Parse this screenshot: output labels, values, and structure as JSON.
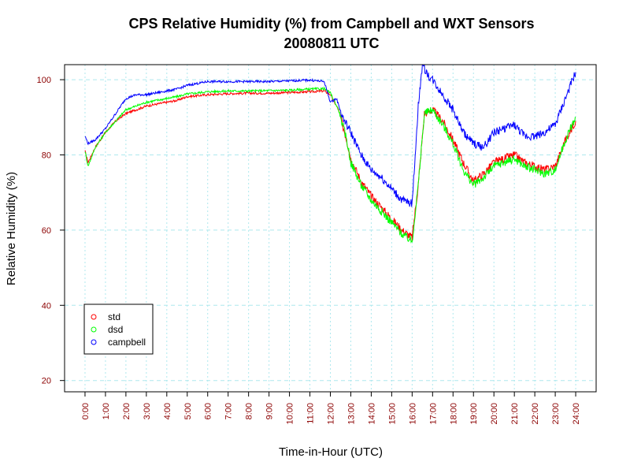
{
  "chart_data": {
    "type": "line",
    "title": "CPS Relative Humidity (%) from Campbell and WXT Sensors",
    "subtitle": "20080811  UTC",
    "xlabel": "Time-in-Hour (UTC)",
    "ylabel": "Relative Humidity (%)",
    "xlim": [
      -1,
      25
    ],
    "ylim": [
      17,
      104
    ],
    "x_ticks": [
      0,
      1,
      2,
      3,
      4,
      5,
      6,
      7,
      8,
      9,
      10,
      11,
      12,
      13,
      14,
      15,
      16,
      17,
      18,
      19,
      20,
      21,
      22,
      23,
      24
    ],
    "x_tick_labels": [
      "0:00",
      "1:00",
      "2:00",
      "3:00",
      "4:00",
      "5:00",
      "6:00",
      "7:00",
      "8:00",
      "9:00",
      "10:00",
      "11:00",
      "12:00",
      "13:00",
      "14:00",
      "15:00",
      "16:00",
      "17:00",
      "18:00",
      "19:00",
      "20:00",
      "21:00",
      "22:00",
      "23:00",
      "24:00"
    ],
    "y_ticks": [
      20,
      40,
      60,
      80,
      100
    ],
    "y_tick_labels": [
      "20",
      "40",
      "60",
      "80",
      "100"
    ],
    "grid": true,
    "legend_position": "bottom-left",
    "series": [
      {
        "name": "std",
        "color": "#ff0000",
        "x": [
          0,
          0.15,
          0.5,
          1,
          1.5,
          2,
          2.5,
          3,
          3.5,
          4,
          4.5,
          5,
          6,
          7,
          8,
          9,
          10,
          11,
          11.7,
          12,
          12.4,
          12.8,
          13,
          13.5,
          14,
          14.5,
          15,
          15.5,
          16,
          16.3,
          16.6,
          17,
          17.5,
          18,
          18.5,
          19,
          19.5,
          20,
          20.5,
          21,
          21.5,
          22,
          22.5,
          23,
          23.5,
          24
        ],
        "values": [
          81,
          78,
          82,
          86,
          89,
          91,
          92,
          93,
          93.5,
          94,
          94.5,
          95.5,
          96,
          96.3,
          96.4,
          96.4,
          96.6,
          96.8,
          97,
          96,
          92,
          84,
          79,
          73,
          69,
          66,
          63,
          60,
          58,
          72,
          91,
          92,
          89,
          84,
          78,
          73,
          75,
          78,
          79,
          80,
          78,
          77,
          76,
          77,
          84,
          89
        ]
      },
      {
        "name": "dsd",
        "color": "#00ff00",
        "x": [
          0,
          0.15,
          0.5,
          1,
          1.5,
          2,
          2.5,
          3,
          3.5,
          4,
          4.5,
          5,
          6,
          7,
          8,
          9,
          10,
          11,
          11.7,
          12,
          12.4,
          12.8,
          13,
          13.5,
          14,
          14.5,
          15,
          15.5,
          16,
          16.3,
          16.6,
          17,
          17.5,
          18,
          18.5,
          19,
          19.5,
          20,
          20.5,
          21,
          21.5,
          22,
          22.5,
          23,
          23.5,
          24
        ],
        "values": [
          81,
          77,
          82,
          86,
          89,
          92,
          93,
          94,
          94.5,
          95,
          95.5,
          96.2,
          96.8,
          97,
          97,
          97.1,
          97.2,
          97.5,
          97.6,
          96.5,
          92,
          84,
          78,
          72,
          68,
          65,
          62,
          59,
          57,
          72,
          91,
          92,
          88,
          83,
          76,
          72,
          74,
          77,
          78,
          79,
          77,
          76,
          75,
          76,
          84,
          90
        ]
      },
      {
        "name": "campbell",
        "color": "#0000ff",
        "x": [
          0,
          0.15,
          0.5,
          1,
          1.5,
          2,
          2.5,
          3,
          3.5,
          4,
          4.5,
          5,
          6,
          7,
          8,
          9,
          10,
          11,
          11.7,
          12,
          12.3,
          12.6,
          13,
          13.5,
          14,
          14.5,
          15,
          15.5,
          16,
          16.3,
          16.5,
          16.8,
          17,
          17.5,
          18,
          18.5,
          19,
          19.5,
          20,
          20.5,
          21,
          21.5,
          22,
          22.5,
          23,
          23.5,
          24
        ],
        "values": [
          85,
          83,
          84,
          87,
          91,
          95,
          96,
          96,
          96.5,
          97,
          97.5,
          98.5,
          99.5,
          99.5,
          99.5,
          99.5,
          99.7,
          99.9,
          99.5,
          94,
          95,
          90,
          86,
          80,
          76,
          74,
          71,
          68,
          67,
          93,
          104,
          101,
          100,
          96,
          92,
          86,
          83,
          82,
          86,
          87,
          88,
          85,
          85,
          86,
          88,
          95,
          102
        ]
      }
    ]
  }
}
